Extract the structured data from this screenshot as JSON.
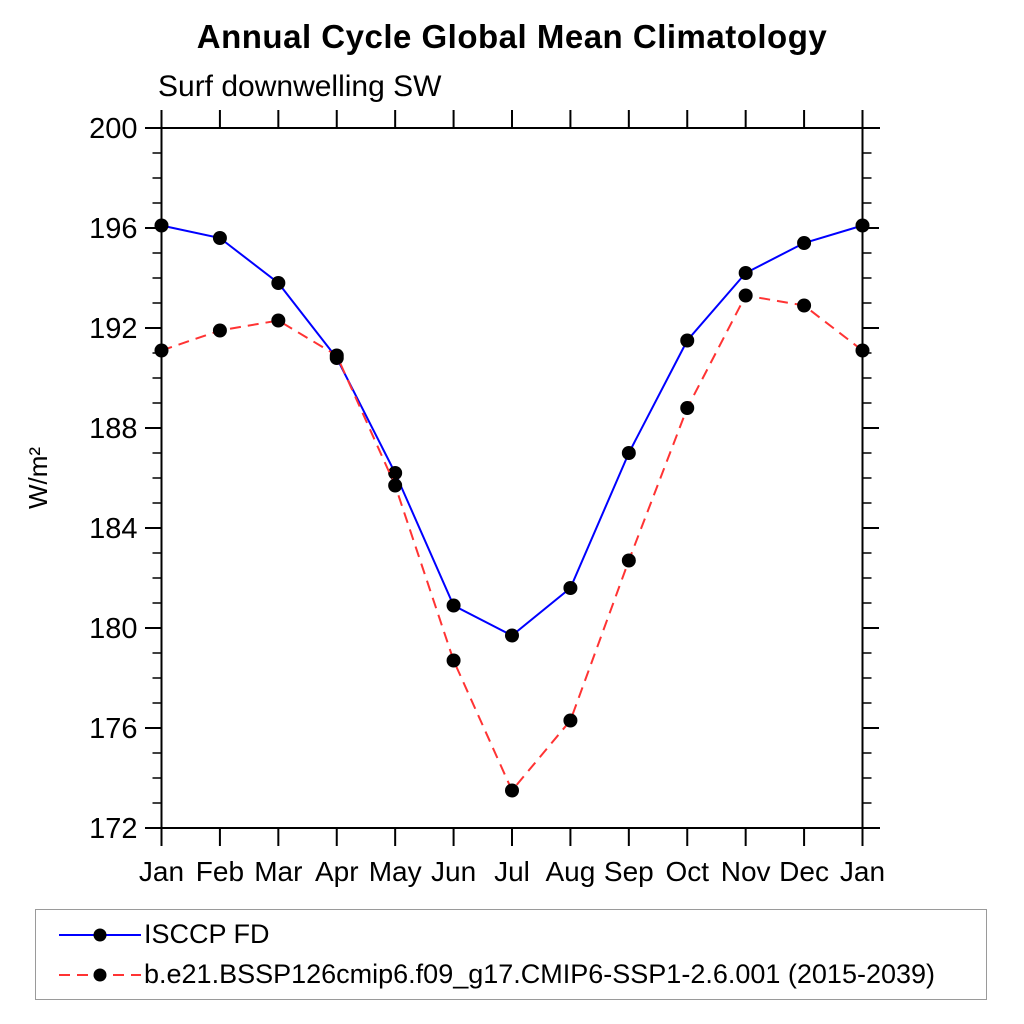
{
  "header": {
    "title": "Annual Cycle Global Mean Climatology",
    "subtitle": "Surf downwelling SW"
  },
  "chart_data": {
    "type": "line",
    "title": "Annual Cycle Global Mean Climatology",
    "subtitle": "Surf downwelling SW",
    "xlabel": "",
    "ylabel": "W/m²",
    "categories": [
      "Jan",
      "Feb",
      "Mar",
      "Apr",
      "May",
      "Jun",
      "Jul",
      "Aug",
      "Sep",
      "Oct",
      "Nov",
      "Dec",
      "Jan"
    ],
    "ylim": [
      172,
      200
    ],
    "y_major_ticks": [
      172,
      176,
      180,
      184,
      188,
      192,
      196,
      200
    ],
    "y_minor_step": 1,
    "grid": false,
    "legend_position": "bottom-left-box",
    "series": [
      {
        "name": "ISCCP FD",
        "color": "#0000ff",
        "line_style": "solid",
        "marker": "filled-circle",
        "marker_color": "#000000",
        "values": [
          196.1,
          195.6,
          193.8,
          190.8,
          186.2,
          180.9,
          179.7,
          181.6,
          187.0,
          191.5,
          194.2,
          195.4,
          196.1
        ]
      },
      {
        "name": "b.e21.BSSP126cmip6.f09_g17.CMIP6-SSP1-2.6.001 (2015-2039)",
        "color": "#ff3333",
        "line_style": "dashed",
        "marker": "filled-circle",
        "marker_color": "#000000",
        "values": [
          191.1,
          191.9,
          192.3,
          190.9,
          185.7,
          178.7,
          173.5,
          176.3,
          182.7,
          188.8,
          193.3,
          192.9,
          191.1
        ]
      }
    ]
  }
}
